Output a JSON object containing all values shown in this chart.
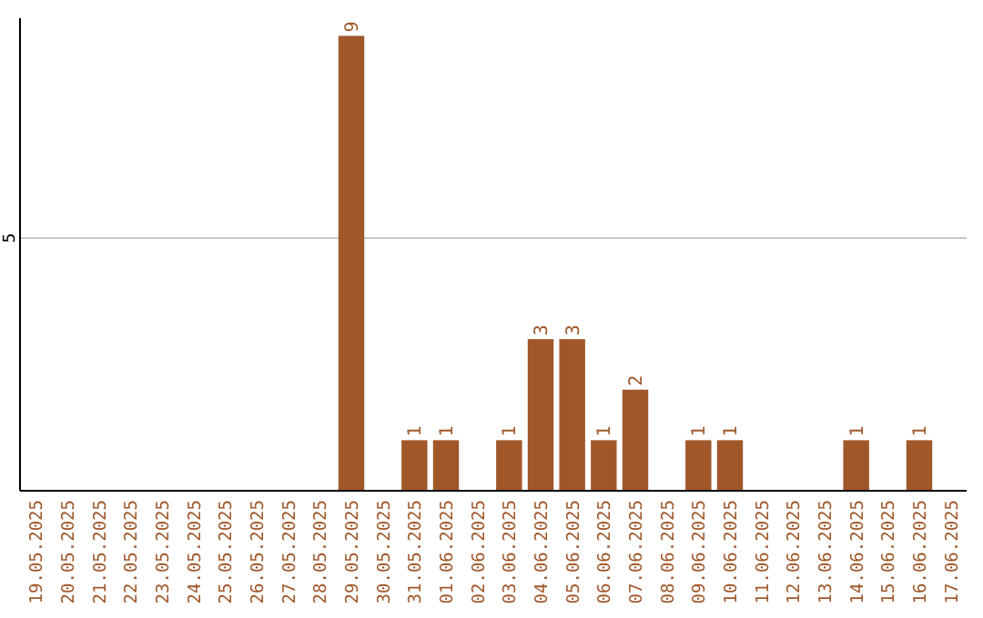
{
  "chart_data": {
    "type": "bar",
    "categories": [
      "19.05.2025",
      "20.05.2025",
      "21.05.2025",
      "22.05.2025",
      "23.05.2025",
      "24.05.2025",
      "25.05.2025",
      "26.05.2025",
      "27.05.2025",
      "28.05.2025",
      "29.05.2025",
      "30.05.2025",
      "31.05.2025",
      "01.06.2025",
      "02.06.2025",
      "03.06.2025",
      "04.06.2025",
      "05.06.2025",
      "06.06.2025",
      "07.06.2025",
      "08.06.2025",
      "09.06.2025",
      "10.06.2025",
      "11.06.2025",
      "12.06.2025",
      "13.06.2025",
      "14.06.2025",
      "15.06.2025",
      "16.06.2025",
      "17.06.2025"
    ],
    "values": [
      0,
      0,
      0,
      0,
      0,
      0,
      0,
      0,
      0,
      0,
      9,
      0,
      1,
      1,
      0,
      1,
      3,
      3,
      1,
      2,
      0,
      1,
      1,
      0,
      0,
      0,
      1,
      0,
      1,
      0
    ],
    "value_labels": [
      null,
      null,
      null,
      null,
      null,
      null,
      null,
      null,
      null,
      null,
      "9",
      null,
      "1",
      "1",
      null,
      "1",
      "3",
      "3",
      "1",
      "2",
      null,
      "1",
      "1",
      null,
      null,
      null,
      "1",
      null,
      "1",
      null
    ],
    "color": "#a0572a",
    "ylim": [
      0,
      9.35
    ],
    "yticks": [
      5
    ],
    "grid": "y"
  }
}
